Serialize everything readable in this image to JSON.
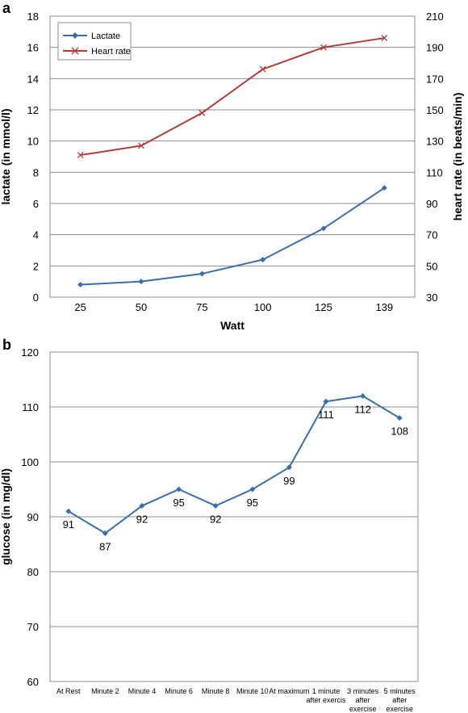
{
  "chart_data": [
    {
      "type": "line",
      "panel_label": "a",
      "categories": [
        "25",
        "50",
        "75",
        "100",
        "125",
        "139"
      ],
      "xlabel": "Watt",
      "ylabel": "lactate (in mmol/l)",
      "y2label": "heart rate (in beats/min)",
      "ylim": [
        0,
        18
      ],
      "yticks": [
        "0",
        "2",
        "4",
        "6",
        "8",
        "10",
        "12",
        "14",
        "16",
        "18"
      ],
      "y2lim": [
        30,
        210
      ],
      "y2ticks": [
        "30",
        "50",
        "70",
        "90",
        "110",
        "130",
        "150",
        "170",
        "190",
        "210"
      ],
      "grid": true,
      "legend_position": "top-left",
      "series": [
        {
          "name": "Lactate",
          "axis": "left",
          "marker": "diamond",
          "color": "#3a6ea5",
          "values": [
            0.8,
            1.0,
            1.5,
            2.4,
            4.4,
            7.0
          ]
        },
        {
          "name": "Heart rate",
          "axis": "right",
          "marker": "x",
          "color": "#b03a3a",
          "values": [
            121,
            127,
            148,
            176,
            190,
            196
          ]
        }
      ]
    },
    {
      "type": "line",
      "panel_label": "b",
      "categories": [
        [
          "At Rest"
        ],
        [
          "Minute 2"
        ],
        [
          "Minute 4"
        ],
        [
          "Minute 6"
        ],
        [
          "Minute 8"
        ],
        [
          "Minute 10"
        ],
        [
          "At maximum"
        ],
        [
          "1 minute",
          "after exercis"
        ],
        [
          "3 minutes",
          "after",
          "exercise"
        ],
        [
          "5 minutes",
          "after",
          "exercise"
        ]
      ],
      "ylabel": "glucose (in mg/dl)",
      "ylim": [
        60,
        120
      ],
      "yticks": [
        "60",
        "70",
        "80",
        "90",
        "100",
        "110",
        "120"
      ],
      "grid": true,
      "series": [
        {
          "color": "#3a6ea5",
          "marker": "diamond",
          "values": [
            91,
            87,
            92,
            95,
            92,
            95,
            99,
            111,
            112,
            108
          ],
          "labels": [
            "91",
            "87",
            "92",
            "95",
            "92",
            "95",
            "99",
            "111",
            "112",
            "108"
          ]
        }
      ]
    }
  ]
}
